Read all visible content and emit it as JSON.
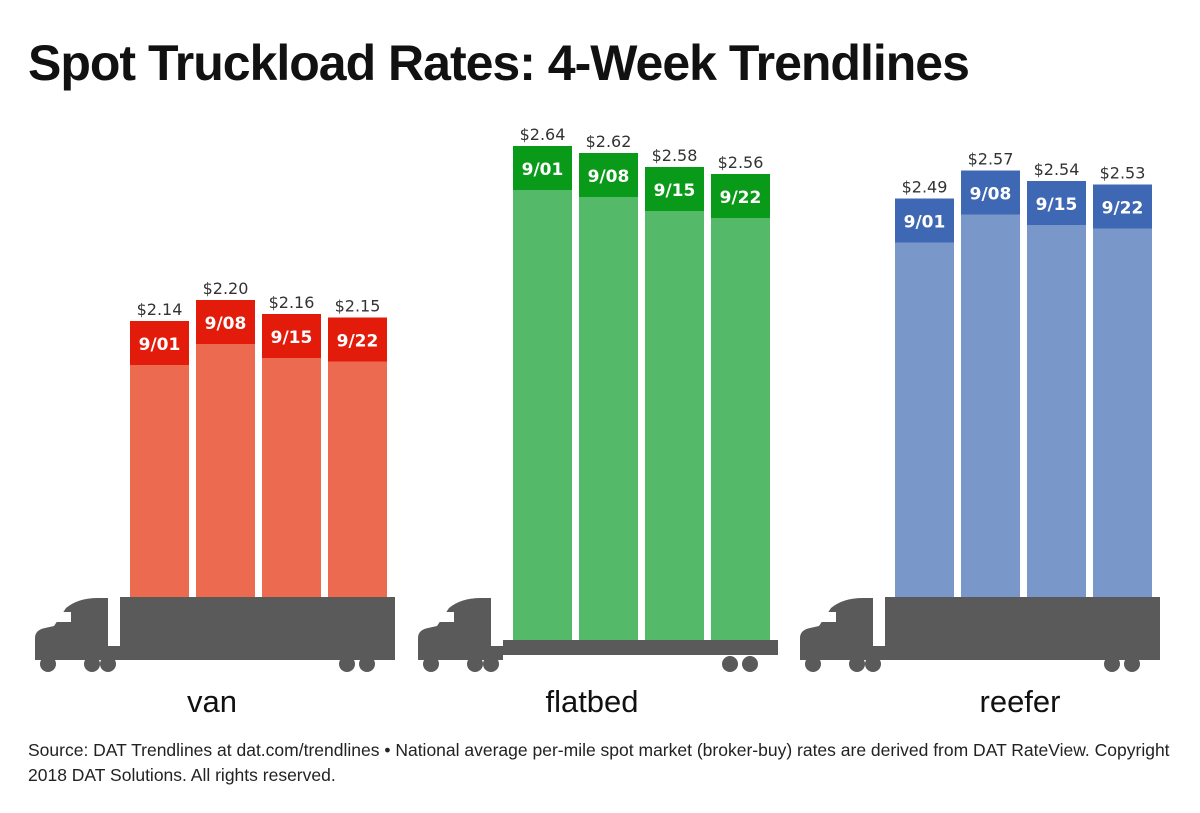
{
  "chart_data": {
    "type": "bar",
    "title": "Spot Truckload Rates: 4-Week Trendlines",
    "categories": [
      "9/01",
      "9/08",
      "9/15",
      "9/22"
    ],
    "groups": [
      {
        "name": "van",
        "values": [
          2.14,
          2.2,
          2.16,
          2.15
        ],
        "labels": [
          "$2.14",
          "$2.20",
          "$2.16",
          "$2.15"
        ],
        "color": "#ec6a4f",
        "accent": "#e21b0a",
        "truck": "van"
      },
      {
        "name": "flatbed",
        "values": [
          2.64,
          2.62,
          2.58,
          2.56
        ],
        "labels": [
          "$2.64",
          "$2.62",
          "$2.58",
          "$2.56"
        ],
        "color": "#55b96a",
        "accent": "#0a9a1a",
        "truck": "flatbed"
      },
      {
        "name": "reefer",
        "values": [
          2.49,
          2.57,
          2.54,
          2.53
        ],
        "labels": [
          "$2.49",
          "$2.57",
          "$2.54",
          "$2.53"
        ],
        "color": "#7a97c9",
        "accent": "#3e68b3",
        "truck": "van"
      }
    ],
    "truck_color": "#5a5a5a",
    "source": "Source: DAT Trendlines at dat.com/trendlines • National average per-mile spot market (broker-buy) rates are derived from DAT RateView. Copyright 2018 DAT Solutions. All rights reserved."
  }
}
